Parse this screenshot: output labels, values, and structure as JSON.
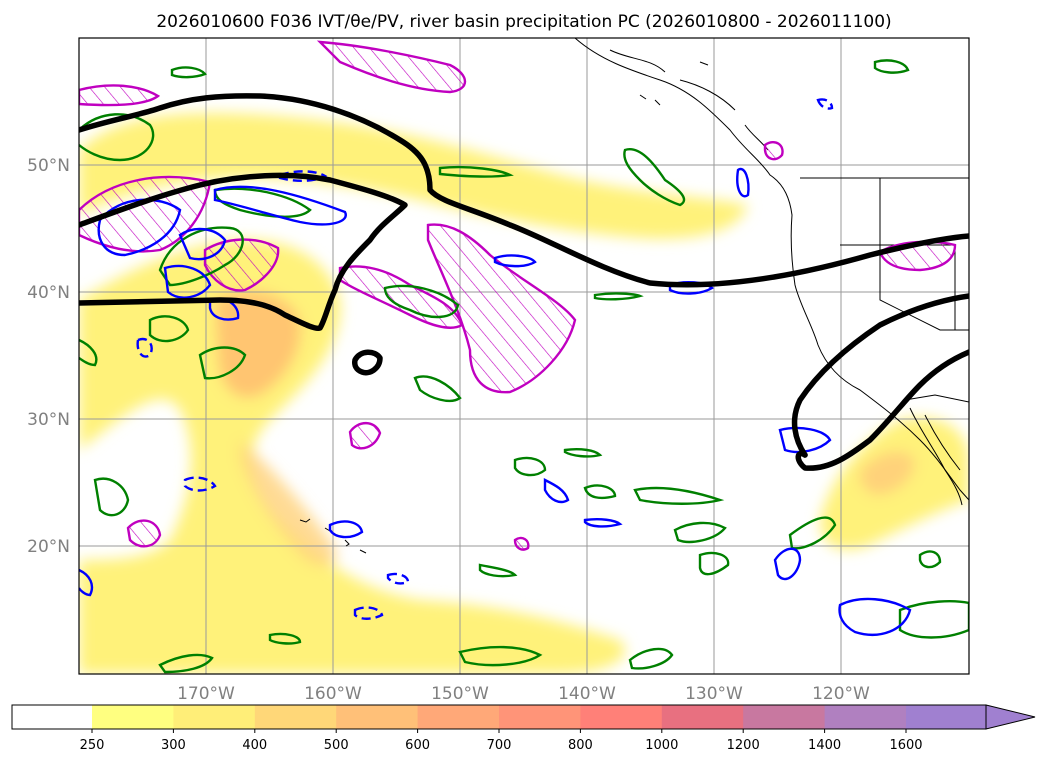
{
  "title": "2026010600 F036 IVT/θe/PV, river basin precipitation PC (2026010800 - 2026011100)",
  "map": {
    "lat_labels": [
      "50°N",
      "40°N",
      "30°N",
      "20°N"
    ],
    "lon_labels": [
      "170°W",
      "160°W",
      "150°W",
      "140°W",
      "130°W",
      "120°W"
    ]
  },
  "colorbar": {
    "ticks": [
      "250",
      "300",
      "400",
      "500",
      "600",
      "700",
      "800",
      "1000",
      "1200",
      "1400",
      "1600"
    ],
    "colors": [
      "#ffff80",
      "#ffee78",
      "#ffd778",
      "#ffc078",
      "#ffa878",
      "#ff9478",
      "#ff8078",
      "#e87080",
      "#c878a0",
      "#b080c0",
      "#a080d0"
    ],
    "below_color": "#ffffff",
    "extend": "max"
  },
  "colors": {
    "ivt_fill": "#ffe45a",
    "ivt_core": "#ffa860",
    "contour_black": "#000000",
    "contour_green": "#008000",
    "contour_blue": "#0000ff",
    "contour_magenta": "#c000c0"
  }
}
